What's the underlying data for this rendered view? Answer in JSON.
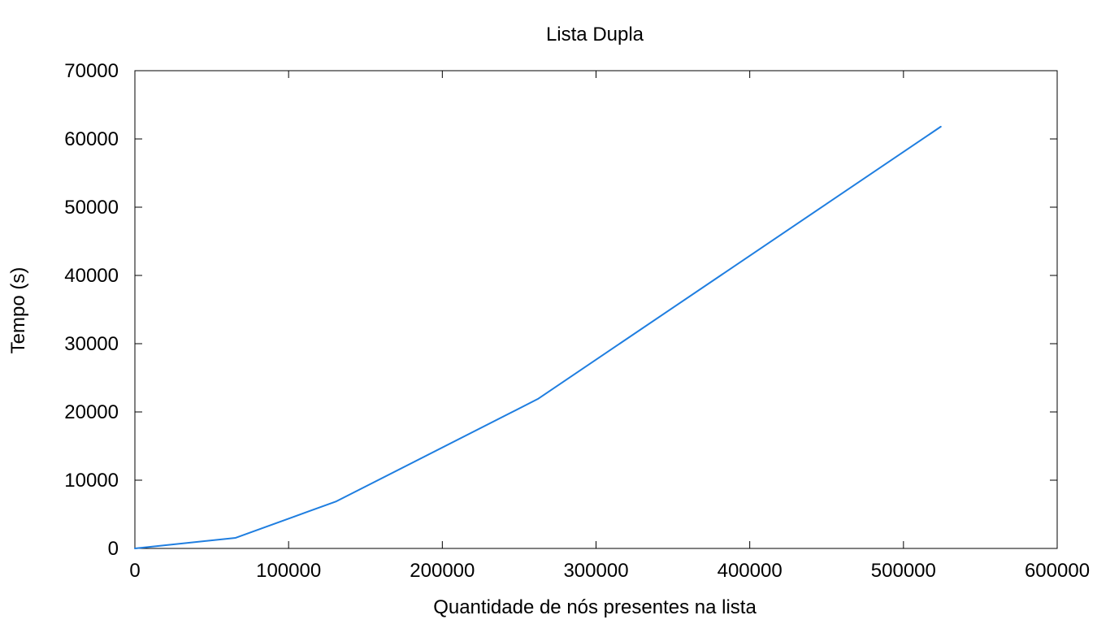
{
  "chart_data": {
    "type": "line",
    "title": "Lista Dupla",
    "xlabel": "Quantidade de nós presentes na lista",
    "ylabel": "Tempo (s)",
    "xlim": [
      0,
      600000
    ],
    "ylim": [
      0,
      70000
    ],
    "xticks": [
      0,
      100000,
      200000,
      300000,
      400000,
      500000,
      600000
    ],
    "yticks": [
      0,
      10000,
      20000,
      30000,
      40000,
      50000,
      60000,
      70000
    ],
    "xtick_labels": [
      "0",
      "100000",
      "200000",
      "300000",
      "400000",
      "500000",
      "600000"
    ],
    "ytick_labels": [
      "0",
      "10000",
      "20000",
      "30000",
      "40000",
      "50000",
      "60000",
      "70000"
    ],
    "grid": false,
    "legend": "none",
    "series": [
      {
        "color": "#1f7ee0",
        "points": [
          [
            0,
            0
          ],
          [
            65536,
            1550
          ],
          [
            131072,
            6900
          ],
          [
            262144,
            21900
          ],
          [
            524288,
            61800
          ]
        ]
      }
    ]
  }
}
